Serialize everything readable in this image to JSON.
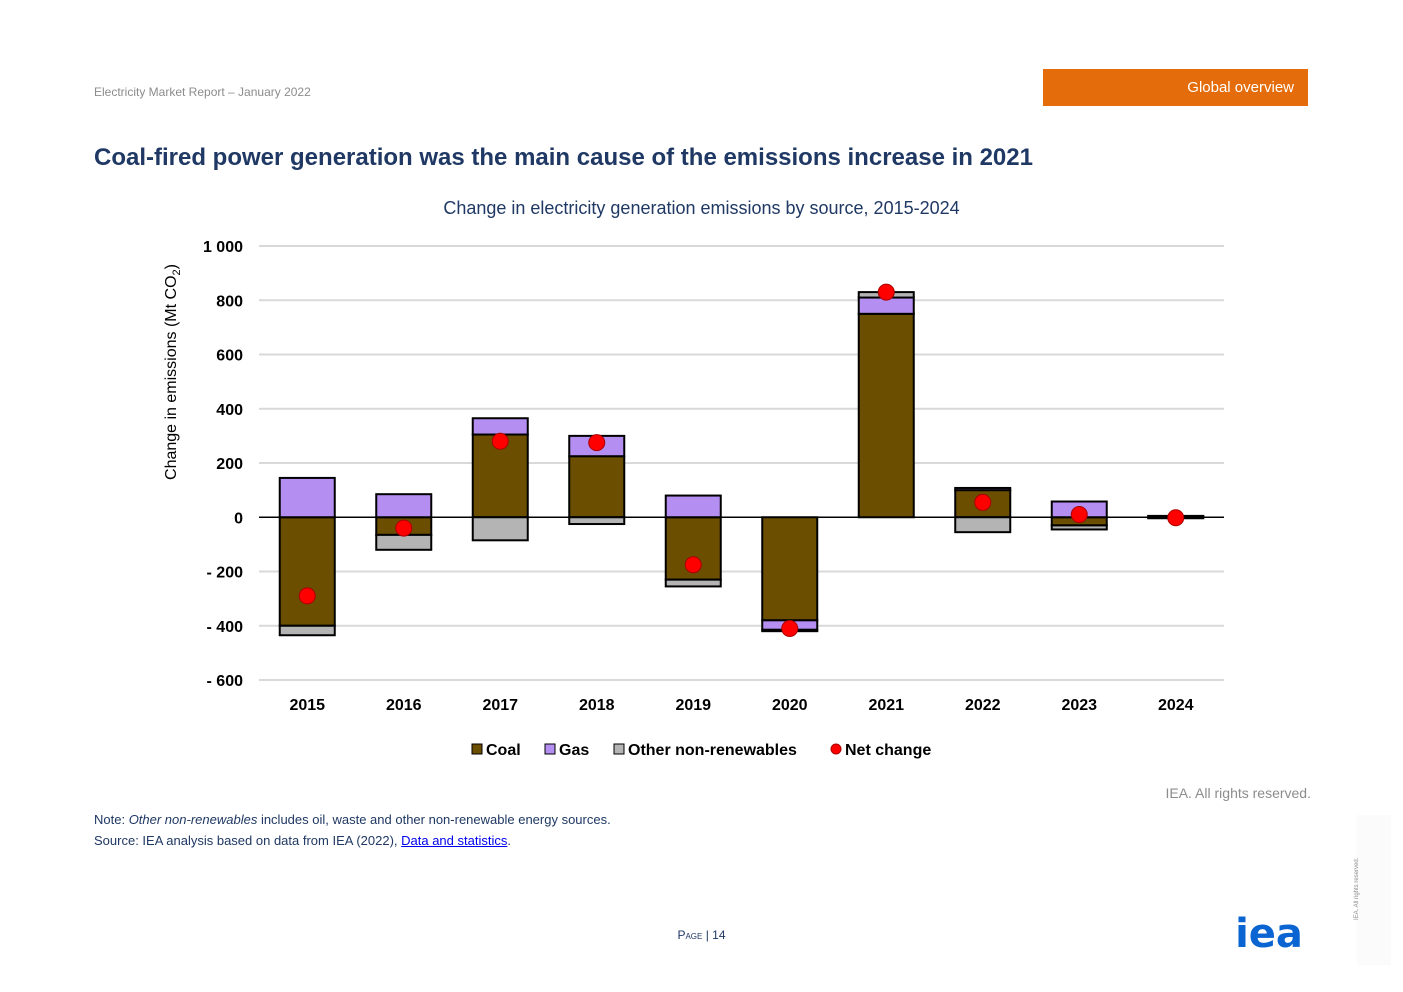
{
  "header": {
    "report_title": "Electricity Market Report – January 2022",
    "section_badge": "Global overview",
    "badge_color": "#e46c0a"
  },
  "page_heading": "Coal-fired power generation was the main cause of the emissions increase in 2021",
  "chart_data": {
    "type": "bar",
    "stacked": true,
    "title": "Change in electricity generation emissions by source, 2015-2024",
    "xlabel": "",
    "ylabel": "Change in emissions (Mt CO",
    "ylabel_sub": "2",
    "ylabel_end": ")",
    "ylim": [
      -600,
      1000
    ],
    "yticks": [
      -600,
      -400,
      -200,
      0,
      200,
      400,
      600,
      800,
      1000
    ],
    "ytick_labels": [
      "- 600",
      "- 400",
      "- 200",
      "0",
      "200",
      "400",
      "600",
      "800",
      "1 000"
    ],
    "grid": true,
    "legend_position": "bottom",
    "categories": [
      "2015",
      "2016",
      "2017",
      "2018",
      "2019",
      "2020",
      "2021",
      "2022",
      "2023",
      "2024"
    ],
    "series": [
      {
        "name": "Coal",
        "color": "#6b4e00",
        "values": [
          -400,
          -65,
          305,
          225,
          -230,
          -380,
          750,
          100,
          -30,
          3
        ]
      },
      {
        "name": "Gas",
        "color": "#b48ef0",
        "values": [
          145,
          85,
          60,
          75,
          80,
          -35,
          60,
          8,
          58,
          2
        ]
      },
      {
        "name": "Other non-renewables",
        "color": "#b4b4b4",
        "values": [
          -35,
          -55,
          -85,
          -25,
          -25,
          -5,
          20,
          -55,
          -15,
          -3
        ]
      }
    ],
    "net_change": {
      "name": "Net change",
      "color": "#ff0000",
      "values": [
        -290,
        -40,
        280,
        275,
        -175,
        -410,
        830,
        55,
        10,
        -2
      ]
    }
  },
  "footer": {
    "copyright": "IEA. All rights reserved.",
    "note_prefix": "Note: ",
    "note_italic": "Other non-renewables",
    "note_rest": " includes oil, waste and other non-renewable energy sources.",
    "source_prefix": "Source: IEA analysis based on data from IEA (2022), ",
    "source_link": "Data and statistics",
    "source_suffix": ".",
    "page_word": "Page",
    "page_number": "| 14",
    "logo_text": "iea",
    "side_text": "IEA. All rights reserved."
  }
}
